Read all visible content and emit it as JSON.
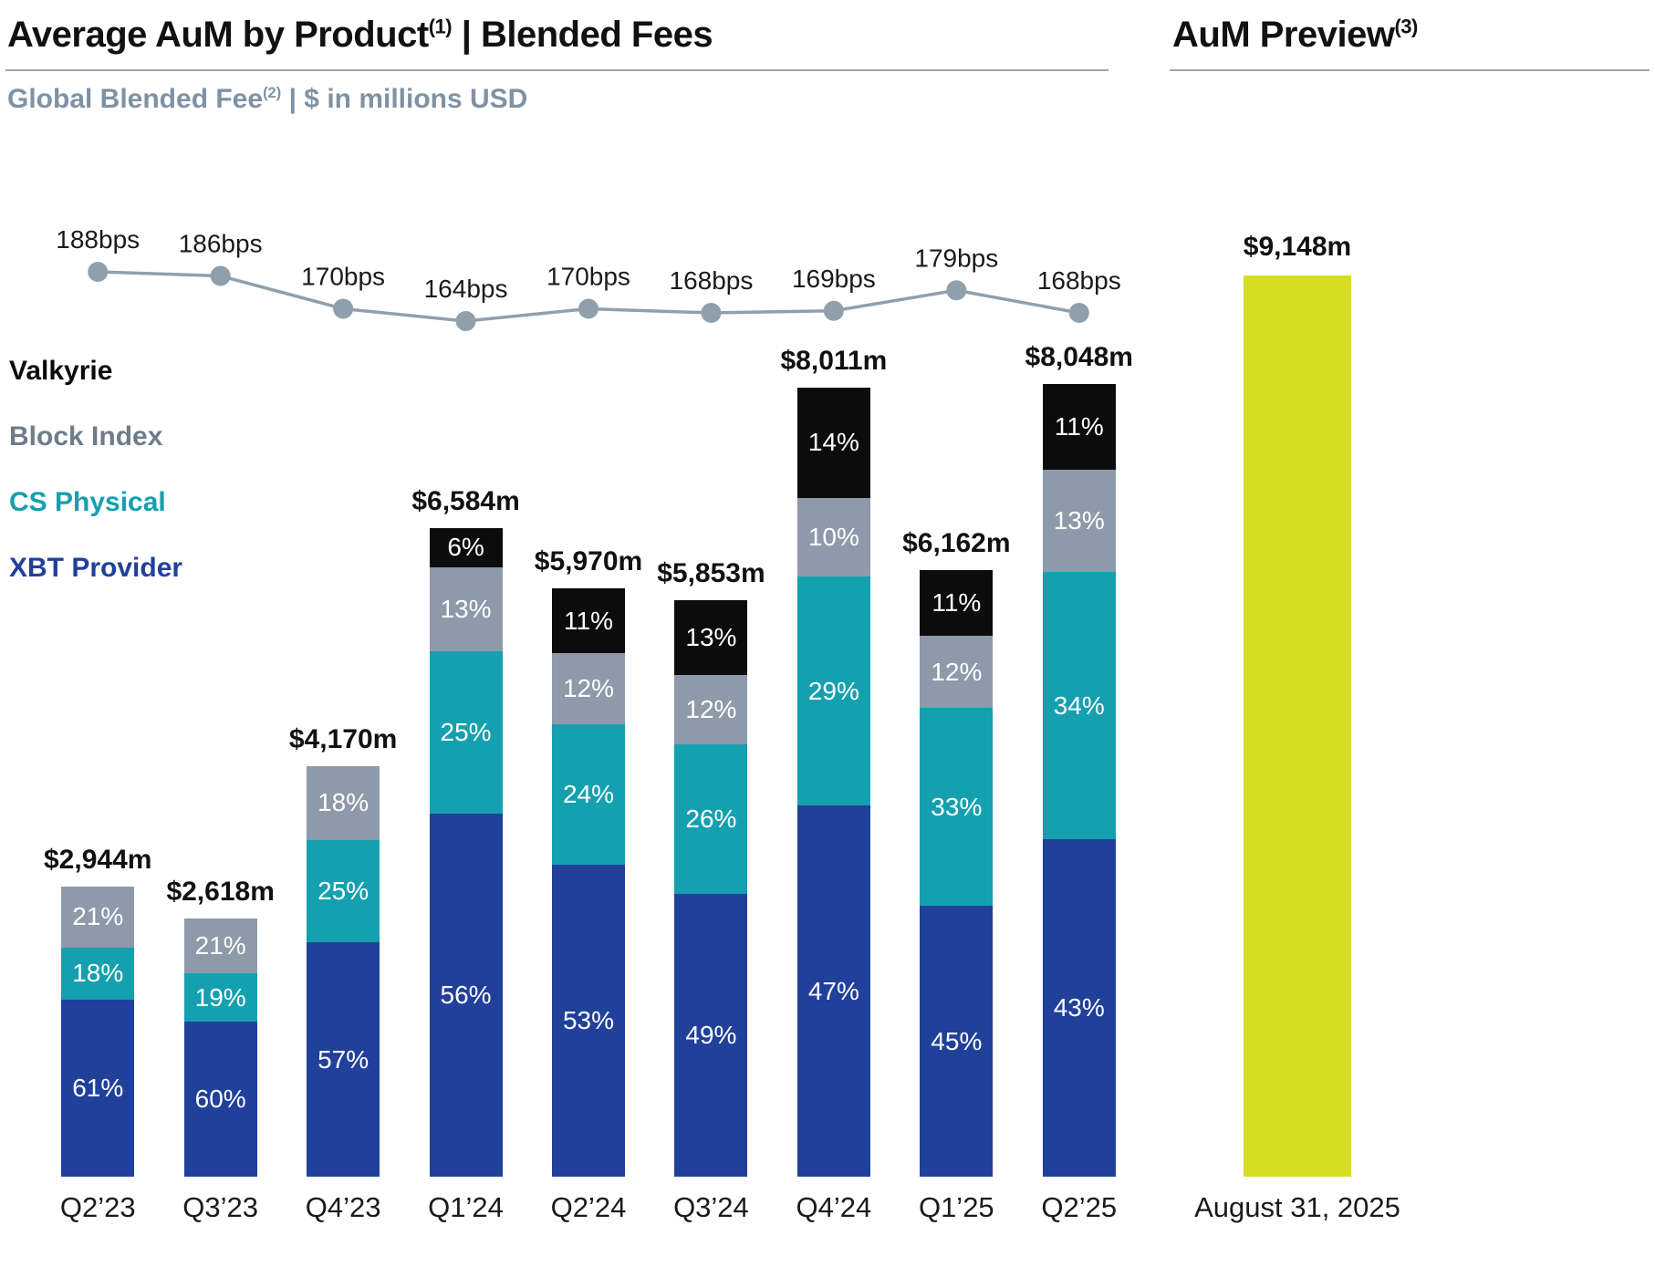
{
  "header": {
    "title_main": "Average AuM by Product",
    "title_sup": "(1)",
    "title_rest": " | Blended Fees",
    "preview_title": "AuM Preview",
    "preview_sup": "(3)",
    "subtitle_main": "Global Blended Fee",
    "subtitle_sup": "(2)",
    "subtitle_rest": " | $ in millions USD"
  },
  "legend": [
    {
      "label": "Valkyrie",
      "color": "#0b0b0b"
    },
    {
      "label": "Block Index",
      "color": "#6e7c8c"
    },
    {
      "label": "CS Physical",
      "color": "#15a0b0"
    },
    {
      "label": "XBT Provider",
      "color": "#21409a"
    }
  ],
  "chart_data": {
    "type": "bar",
    "stacked": true,
    "title": "Average AuM by Product | Blended Fees",
    "subtitle": "Global Blended Fee | $ in millions USD",
    "unit": "$ millions USD",
    "categories": [
      "Q2’23",
      "Q3’23",
      "Q4’23",
      "Q1’24",
      "Q2’24",
      "Q3’24",
      "Q4’24",
      "Q1’25",
      "Q2’25"
    ],
    "totals_m": [
      2944,
      2618,
      4170,
      6584,
      5970,
      5853,
      8011,
      6162,
      8048
    ],
    "total_labels": [
      "$2,944m",
      "$2,618m",
      "$4,170m",
      "$6,584m",
      "$5,970m",
      "$5,853m",
      "$8,011m",
      "$6,162m",
      "$8,048m"
    ],
    "series": [
      {
        "name": "XBT Provider",
        "color": "#21409a",
        "pct": [
          61,
          60,
          57,
          56,
          53,
          49,
          47,
          45,
          43
        ]
      },
      {
        "name": "CS Physical",
        "color": "#15a0b0",
        "pct": [
          18,
          19,
          25,
          25,
          24,
          26,
          29,
          33,
          34
        ]
      },
      {
        "name": "Block Index",
        "color": "#8e9aa9",
        "pct": [
          21,
          21,
          18,
          13,
          12,
          12,
          10,
          12,
          13
        ]
      },
      {
        "name": "Valkyrie",
        "color": "#0c0c0c",
        "pct": [
          0,
          0,
          0,
          6,
          11,
          13,
          14,
          11,
          11
        ]
      }
    ],
    "fee_line": {
      "name": "Global Blended Fee",
      "unit": "bps",
      "values": [
        188,
        186,
        170,
        164,
        170,
        168,
        169,
        179,
        168
      ],
      "labels": [
        "188bps",
        "186bps",
        "170bps",
        "164bps",
        "170bps",
        "168bps",
        "169bps",
        "179bps",
        "168bps"
      ],
      "color": "#8fa0ac"
    },
    "preview": {
      "title": "AuM Preview",
      "label": "August 31, 2025",
      "value_m": 9148,
      "total_label": "$9,148m",
      "color": "#d6de23"
    }
  }
}
